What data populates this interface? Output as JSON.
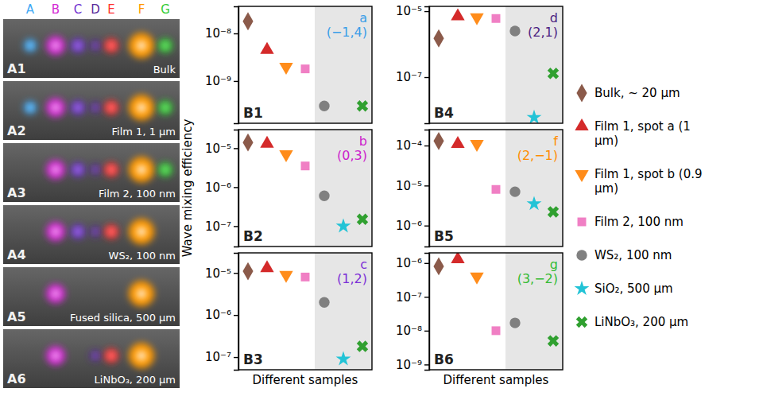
{
  "photos": {
    "spot_labels": [
      {
        "text": "A",
        "color": "#3fa9f5"
      },
      {
        "text": "B",
        "color": "#d42ad4"
      },
      {
        "text": "C",
        "color": "#7030d0"
      },
      {
        "text": "D",
        "color": "#5a2a9a"
      },
      {
        "text": "E",
        "color": "#ff3030"
      },
      {
        "text": "F",
        "color": "#ff9900"
      },
      {
        "text": "G",
        "color": "#33cc33"
      }
    ],
    "panels": [
      {
        "label": "A1",
        "caption": "Bulk"
      },
      {
        "label": "A2",
        "caption": "Film 1, 1 µm"
      },
      {
        "label": "A3",
        "caption": "Film 2, 100 nm"
      },
      {
        "label": "A4",
        "caption": "WS₂, 100 nm"
      },
      {
        "label": "A5",
        "caption": "Fused silica, 500 µm"
      },
      {
        "label": "A6",
        "caption": "LiNbO₃, 200 µm"
      }
    ]
  },
  "chart_data": [
    {
      "type": "scatter",
      "title": "a",
      "subtitle": "(−1,4)",
      "color": "#3a9ee8",
      "annotations": [
        "B1"
      ],
      "log": "y",
      "tick_labels": "y",
      "legend": "right",
      "ylim": [
        1.3e-10,
        3.7e-08
      ],
      "yticks": [
        {
          "value": 1e-09,
          "label": "10⁻⁹"
        },
        {
          "value": 1e-08,
          "label": "10⁻⁸"
        }
      ],
      "series": [
        {
          "name": "Bulk, ~ 20 µm",
          "color": "#8b5a4a",
          "marker": "diamond",
          "values": [
            1.8e-08
          ]
        },
        {
          "name": "Film 1, spot a (1 µm)",
          "color": "#d42a2a",
          "marker": "triangle-up",
          "values": [
            4.5e-09
          ]
        },
        {
          "name": "Film 1, spot b (0.9 µm)",
          "color": "#ff8c1a",
          "marker": "triangle-down",
          "values": [
            2e-09
          ]
        },
        {
          "name": "Film 2, 100 nm",
          "color": "#f07fc4",
          "marker": "square",
          "values": [
            1.8e-09
          ]
        },
        {
          "name": "WS₂, 100 nm",
          "color": "#808080",
          "marker": "circle",
          "values": [
            3e-10
          ]
        },
        {
          "name": "SiO₂, 500 µm",
          "color": "#22c3d6",
          "marker": "star",
          "values": [
            null
          ]
        },
        {
          "name": "LiNbO₃, 200 µm",
          "color": "#30a030",
          "marker": "x",
          "values": [
            3e-10
          ]
        }
      ]
    },
    {
      "type": "scatter",
      "title": "b",
      "subtitle": "(0,3)",
      "color": "#cc22cc",
      "annotations": [
        "B2"
      ],
      "log": "y",
      "tick_labels": "y",
      "y_label": "Wave mixing efficiency",
      "ylim": [
        3e-08,
        3e-05
      ],
      "yticks": [
        {
          "value": 1e-07,
          "label": "10⁻⁷"
        },
        {
          "value": 1e-06,
          "label": "10⁻⁶"
        },
        {
          "value": 1e-05,
          "label": "10⁻⁵"
        }
      ],
      "series": [
        {
          "color": "#8b5a4a",
          "marker": "diamond",
          "values": [
            1.4e-05
          ]
        },
        {
          "color": "#d42a2a",
          "marker": "triangle-up",
          "values": [
            1.3e-05
          ]
        },
        {
          "color": "#ff8c1a",
          "marker": "triangle-down",
          "values": [
            7e-06
          ]
        },
        {
          "color": "#f07fc4",
          "marker": "square",
          "values": [
            3.5e-06
          ]
        },
        {
          "color": "#808080",
          "marker": "circle",
          "values": [
            6e-07
          ]
        },
        {
          "color": "#22c3d6",
          "marker": "star",
          "values": [
            1e-07
          ]
        },
        {
          "color": "#30a030",
          "marker": "x",
          "values": [
            1.5e-07
          ]
        }
      ]
    },
    {
      "type": "scatter",
      "title": "c",
      "subtitle": "(1,2)",
      "color": "#7b2fd6",
      "annotations": [
        "B3"
      ],
      "log": "y",
      "tick_labels": "y",
      "x_label": "Different samples",
      "ylim": [
        5e-08,
        3e-05
      ],
      "yticks": [
        {
          "value": 1e-07,
          "label": "10⁻⁷"
        },
        {
          "value": 1e-06,
          "label": "10⁻⁶"
        },
        {
          "value": 1e-05,
          "label": "10⁻⁵"
        }
      ],
      "series": [
        {
          "color": "#8b5a4a",
          "marker": "diamond",
          "values": [
            1.1e-05
          ]
        },
        {
          "color": "#d42a2a",
          "marker": "triangle-up",
          "values": [
            1.3e-05
          ]
        },
        {
          "color": "#ff8c1a",
          "marker": "triangle-down",
          "values": [
            9e-06
          ]
        },
        {
          "color": "#f07fc4",
          "marker": "square",
          "values": [
            8e-06
          ]
        },
        {
          "color": "#808080",
          "marker": "circle",
          "values": [
            2e-06
          ]
        },
        {
          "color": "#22c3d6",
          "marker": "star",
          "values": [
            9e-08
          ]
        },
        {
          "color": "#30a030",
          "marker": "x",
          "values": [
            1.8e-07
          ]
        }
      ]
    },
    {
      "type": "scatter",
      "title": "d",
      "subtitle": "(2,1)",
      "color": "#4b2080",
      "annotations": [
        "B4"
      ],
      "log": "y",
      "tick_labels": "y",
      "ylim": [
        4e-09,
        1.4e-05
      ],
      "yticks": [
        {
          "value": 1e-07,
          "label": "10⁻⁷"
        },
        {
          "value": 1e-05,
          "label": "10⁻⁵"
        }
      ],
      "series": [
        {
          "color": "#8b5a4a",
          "marker": "diamond",
          "values": [
            1.5e-06
          ]
        },
        {
          "color": "#d42a2a",
          "marker": "triangle-up",
          "values": [
            7e-06
          ]
        },
        {
          "color": "#ff8c1a",
          "marker": "triangle-down",
          "values": [
            6.5e-06
          ]
        },
        {
          "color": "#f07fc4",
          "marker": "square",
          "values": [
            6e-06
          ]
        },
        {
          "color": "#808080",
          "marker": "circle",
          "values": [
            2.5e-06
          ]
        },
        {
          "color": "#22c3d6",
          "marker": "star",
          "values": [
            6e-09
          ]
        },
        {
          "color": "#30a030",
          "marker": "x",
          "values": [
            1.3e-07
          ]
        }
      ]
    },
    {
      "type": "scatter",
      "title": "f",
      "subtitle": "(2,−1)",
      "color": "#ff8c00",
      "annotations": [
        "B5"
      ],
      "log": "y",
      "tick_labels": "y",
      "ylim": [
        3e-07,
        0.00025
      ],
      "yticks": [
        {
          "value": 1e-06,
          "label": "10⁻⁶"
        },
        {
          "value": 1e-05,
          "label": "10⁻⁵"
        },
        {
          "value": 0.0001,
          "label": "10⁻⁴"
        }
      ],
      "series": [
        {
          "color": "#8b5a4a",
          "marker": "diamond",
          "values": [
            0.00013
          ]
        },
        {
          "color": "#d42a2a",
          "marker": "triangle-up",
          "values": [
            0.00011
          ]
        },
        {
          "color": "#ff8c1a",
          "marker": "triangle-down",
          "values": [
            0.00011
          ]
        },
        {
          "color": "#f07fc4",
          "marker": "square",
          "values": [
            8e-06
          ]
        },
        {
          "color": "#808080",
          "marker": "circle",
          "values": [
            7e-06
          ]
        },
        {
          "color": "#22c3d6",
          "marker": "star",
          "values": [
            3.5e-06
          ]
        },
        {
          "color": "#30a030",
          "marker": "x",
          "values": [
            2.2e-06
          ]
        }
      ]
    },
    {
      "type": "scatter",
      "title": "g",
      "subtitle": "(3,−2)",
      "color": "#33bb33",
      "annotations": [
        "B6"
      ],
      "log": "y",
      "tick_labels": "y",
      "x_label": "Different samples",
      "ylim": [
        7e-10,
        2e-06
      ],
      "yticks": [
        {
          "value": 1e-09,
          "label": "10⁻⁹"
        },
        {
          "value": 1e-08,
          "label": "10⁻⁸"
        },
        {
          "value": 1e-07,
          "label": "10⁻⁷"
        },
        {
          "value": 1e-06,
          "label": "10⁻⁶"
        }
      ],
      "series": [
        {
          "color": "#8b5a4a",
          "marker": "diamond",
          "values": [
            8e-07
          ]
        },
        {
          "color": "#d42a2a",
          "marker": "triangle-up",
          "values": [
            1.3e-06
          ]
        },
        {
          "color": "#ff8c1a",
          "marker": "triangle-down",
          "values": [
            4e-07
          ]
        },
        {
          "color": "#f07fc4",
          "marker": "square",
          "values": [
            1e-08
          ]
        },
        {
          "color": "#808080",
          "marker": "circle",
          "values": [
            1.7e-08
          ]
        },
        {
          "color": "#22c3d6",
          "marker": "star",
          "values": [
            null
          ]
        },
        {
          "color": "#30a030",
          "marker": "x",
          "values": [
            5e-09
          ]
        }
      ]
    }
  ]
}
